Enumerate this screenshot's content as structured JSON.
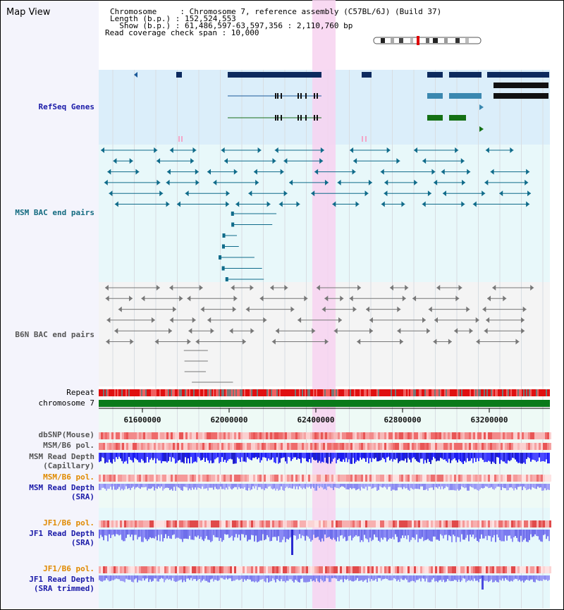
{
  "header": {
    "title": "Map View",
    "chromosome_line": "Chromosome     : Chromosome 7, reference assembly (C57BL/6J) (Build 37)",
    "length_line": "Length (b.p.) : 152,524,553",
    "show_line": "  Show (b.p.) : 61,486,597-63,597,356 : 2,110,760 bp",
    "coverage_line": "Read coverage check span : 10,000"
  },
  "tracks": {
    "refseq": "RefSeq Genes",
    "msm_bac": "MSM BAC end pairs",
    "b6n_bac": "B6N BAC end pairs",
    "repeat": "Repeat",
    "chromosome": "chromosome 7",
    "dbsnp": "dbSNP(Mouse)",
    "msm_b6_pol": "MSM/B6 pol.",
    "msm_read_depth_cap_1": "MSM Read Depth",
    "msm_read_depth_cap_2": "(Capillary)",
    "msm_b6_pol_2": "MSM/B6 pol.",
    "msm_read_depth_sra_1": "MSM Read Depth",
    "msm_read_depth_sra_2": "(SRA)",
    "jf1_b6_pol": "JF1/B6 pol.",
    "jf1_read_depth_sra_1": "JF1 Read Depth",
    "jf1_read_depth_sra_2": "(SRA)",
    "jf1_b6_pol_2": "JF1/B6 pol.",
    "jf1_read_depth_trim_1": "JF1 Read Depth",
    "jf1_read_depth_trim_2": "(SRA trimmed)"
  },
  "axis": {
    "ticks": [
      "61600000",
      "62000000",
      "62400000",
      "62800000",
      "63200000"
    ]
  },
  "colors": {
    "refseq_bg": "#dbeefa",
    "msm_bg": "#e8f8fa",
    "b6n_bg": "#f4f4f4",
    "highlight": "#f7d2f0",
    "gene_dark": "#0d2a5e",
    "msm_pair": "#0f6b8a",
    "b6n_pair": "#777777",
    "chrom_bar": "#0a7a1a"
  }
}
